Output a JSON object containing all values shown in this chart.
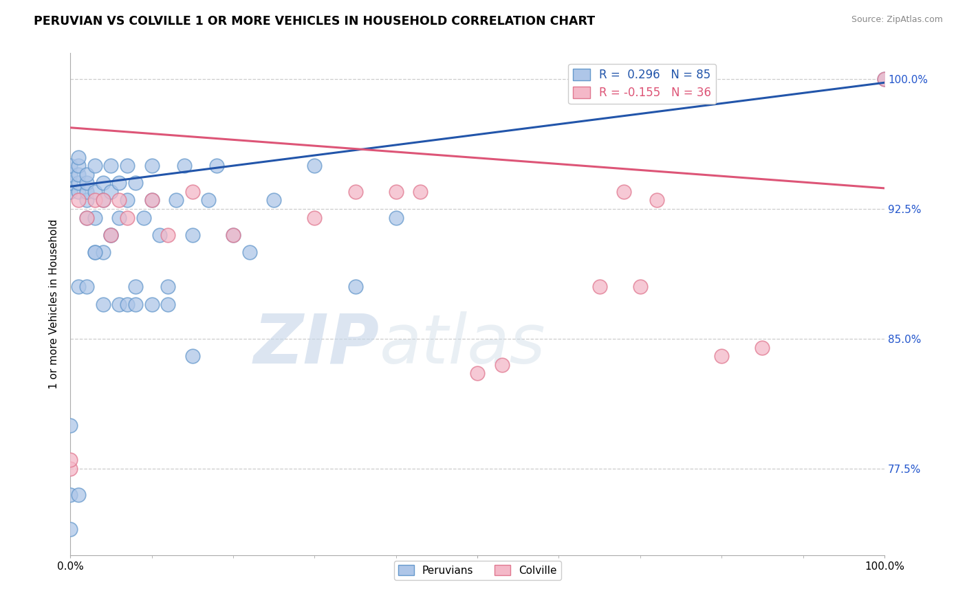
{
  "title": "PERUVIAN VS COLVILLE 1 OR MORE VEHICLES IN HOUSEHOLD CORRELATION CHART",
  "ylabel": "1 or more Vehicles in Household",
  "source": "Source: ZipAtlas.com",
  "xlim": [
    0.0,
    1.0
  ],
  "ylim": [
    0.725,
    1.015
  ],
  "ytick_vals": [
    0.775,
    0.85,
    0.925,
    1.0
  ],
  "ytick_labels": [
    "77.5%",
    "85.0%",
    "92.5%",
    "100.0%"
  ],
  "peruvian_color": "#aec6e8",
  "peruvian_edge": "#6699cc",
  "colville_color": "#f4b8c8",
  "colville_edge": "#e07890",
  "watermark_zip": "ZIP",
  "watermark_atlas": "atlas",
  "blue_line_x": [
    0.0,
    1.0
  ],
  "blue_line_y": [
    0.938,
    0.998
  ],
  "pink_line_x": [
    0.0,
    1.0
  ],
  "pink_line_y": [
    0.972,
    0.937
  ],
  "peruvian_x": [
    0.0,
    0.0,
    0.0,
    0.0,
    0.01,
    0.01,
    0.01,
    0.01,
    0.01,
    0.02,
    0.02,
    0.02,
    0.02,
    0.02,
    0.03,
    0.03,
    0.03,
    0.03,
    0.04,
    0.04,
    0.04,
    0.05,
    0.05,
    0.05,
    0.06,
    0.06,
    0.07,
    0.07,
    0.08,
    0.08,
    0.09,
    0.1,
    0.1,
    0.11,
    0.12,
    0.13,
    0.14,
    0.15,
    0.17,
    0.18,
    0.2,
    0.22,
    0.25,
    0.3,
    0.35,
    0.4,
    1.0
  ],
  "peruvian_y": [
    0.935,
    0.94,
    0.945,
    0.95,
    0.935,
    0.94,
    0.945,
    0.95,
    0.955,
    0.92,
    0.93,
    0.935,
    0.94,
    0.945,
    0.9,
    0.92,
    0.935,
    0.95,
    0.9,
    0.93,
    0.94,
    0.91,
    0.935,
    0.95,
    0.92,
    0.94,
    0.93,
    0.95,
    0.88,
    0.94,
    0.92,
    0.93,
    0.95,
    0.91,
    0.88,
    0.93,
    0.95,
    0.91,
    0.93,
    0.95,
    0.91,
    0.9,
    0.93,
    0.95,
    0.88,
    0.92,
    1.0
  ],
  "peruvian_x_low": [
    0.0,
    0.0,
    0.0,
    0.01,
    0.01,
    0.02,
    0.03,
    0.04,
    0.05,
    0.06,
    0.07,
    0.08,
    0.1,
    0.12,
    0.15
  ],
  "peruvian_y_low": [
    0.74,
    0.76,
    0.8,
    0.76,
    0.88,
    0.88,
    0.9,
    0.87,
    0.91,
    0.87,
    0.87,
    0.87,
    0.87,
    0.87,
    0.84
  ],
  "colville_x": [
    0.0,
    0.0,
    0.01,
    0.02,
    0.03,
    0.04,
    0.05,
    0.06,
    0.07,
    0.1,
    0.12,
    0.15,
    0.2,
    0.3,
    0.35,
    0.4,
    0.43,
    0.5,
    0.53,
    0.65,
    0.68,
    0.7,
    0.72,
    0.8,
    0.85,
    1.0
  ],
  "colville_y": [
    0.775,
    0.78,
    0.93,
    0.92,
    0.93,
    0.93,
    0.91,
    0.93,
    0.92,
    0.93,
    0.91,
    0.935,
    0.91,
    0.92,
    0.935,
    0.935,
    0.935,
    0.83,
    0.835,
    0.88,
    0.935,
    0.88,
    0.93,
    0.84,
    0.845,
    1.0
  ]
}
